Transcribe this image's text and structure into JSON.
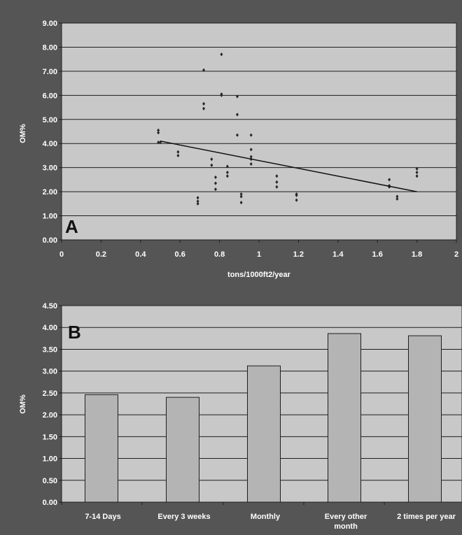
{
  "colors": {
    "background": "#555555",
    "plot_area": "#c8c8c8",
    "gridline": "#1e1e1e",
    "marker": "#262626",
    "bar_fill": "#b4b4b4",
    "bar_stroke": "#1e1e1e",
    "text": "#ffffff"
  },
  "chart_data": [
    {
      "id": "A",
      "type": "scatter",
      "panel_label": "A",
      "xlabel": "tons/1000ft2/year",
      "ylabel": "OM%",
      "xlim": [
        0,
        2
      ],
      "ylim": [
        0,
        9
      ],
      "x_ticks": [
        "0",
        "0.2",
        "0.4",
        "0.6",
        "0.8",
        "1",
        "1.2",
        "1.4",
        "1.6",
        "1.8",
        "2"
      ],
      "y_ticks": [
        "0.00",
        "1.00",
        "2.00",
        "3.00",
        "4.00",
        "5.00",
        "6.00",
        "7.00",
        "8.00",
        "9.00"
      ],
      "grid": true,
      "points": [
        [
          0.49,
          4.55
        ],
        [
          0.49,
          4.45
        ],
        [
          0.49,
          4.05
        ],
        [
          0.5,
          4.05
        ],
        [
          0.59,
          3.65
        ],
        [
          0.59,
          3.5
        ],
        [
          0.69,
          1.75
        ],
        [
          0.69,
          1.6
        ],
        [
          0.69,
          1.5
        ],
        [
          0.72,
          7.05
        ],
        [
          0.72,
          5.65
        ],
        [
          0.72,
          5.45
        ],
        [
          0.76,
          3.35
        ],
        [
          0.76,
          3.1
        ],
        [
          0.78,
          2.6
        ],
        [
          0.78,
          2.35
        ],
        [
          0.78,
          2.1
        ],
        [
          0.81,
          7.7
        ],
        [
          0.81,
          6.05
        ],
        [
          0.81,
          6.0
        ],
        [
          0.84,
          3.05
        ],
        [
          0.84,
          2.8
        ],
        [
          0.84,
          2.65
        ],
        [
          0.89,
          5.95
        ],
        [
          0.89,
          5.2
        ],
        [
          0.89,
          4.35
        ],
        [
          0.91,
          1.9
        ],
        [
          0.91,
          1.8
        ],
        [
          0.91,
          1.55
        ],
        [
          0.96,
          4.35
        ],
        [
          0.96,
          3.75
        ],
        [
          0.96,
          3.45
        ],
        [
          0.96,
          3.35
        ],
        [
          0.96,
          3.15
        ],
        [
          1.09,
          2.65
        ],
        [
          1.09,
          2.4
        ],
        [
          1.09,
          2.2
        ],
        [
          1.19,
          1.9
        ],
        [
          1.19,
          1.85
        ],
        [
          1.19,
          1.65
        ],
        [
          1.66,
          2.5
        ],
        [
          1.66,
          2.25
        ],
        [
          1.66,
          2.2
        ],
        [
          1.7,
          1.8
        ],
        [
          1.7,
          1.7
        ],
        [
          1.8,
          2.95
        ],
        [
          1.8,
          2.8
        ],
        [
          1.8,
          2.65
        ]
      ],
      "trendline": {
        "x": [
          0.5,
          1.8
        ],
        "y": [
          4.1,
          2.0
        ]
      }
    },
    {
      "id": "B",
      "type": "bar",
      "panel_label": "B",
      "ylabel": "OM%",
      "ylim": [
        0,
        4.5
      ],
      "y_ticks": [
        "0.00",
        "0.50",
        "1.00",
        "1.50",
        "2.00",
        "2.50",
        "3.00",
        "3.50",
        "4.00",
        "4.50"
      ],
      "grid": true,
      "categories": [
        "7-14 Days",
        "Every 3 weeks",
        "Monthly",
        "Every other month",
        "2 times per year"
      ],
      "category_lines": [
        [
          "7-14 Days"
        ],
        [
          "Every 3 weeks"
        ],
        [
          "Monthly"
        ],
        [
          "Every other",
          "month"
        ],
        [
          "2 times per year"
        ]
      ],
      "values": [
        2.46,
        2.4,
        3.12,
        3.86,
        3.81
      ]
    }
  ]
}
